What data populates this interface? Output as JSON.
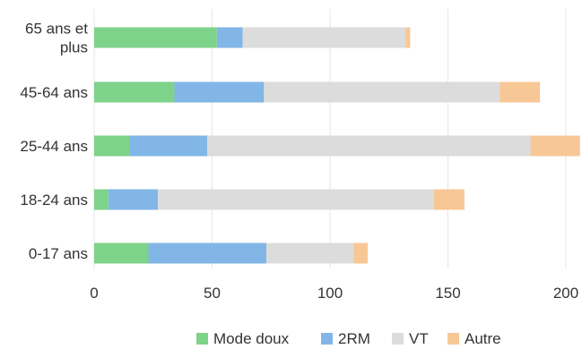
{
  "chart_data": {
    "type": "bar",
    "orientation": "horizontal",
    "stacked": true,
    "categories": [
      "65 ans et plus",
      "45-64 ans",
      "25-44 ans",
      "18-24 ans",
      "0-17 ans"
    ],
    "category_lines": [
      [
        "65 ans et",
        "plus"
      ],
      [
        "45-64 ans"
      ],
      [
        "25-44 ans"
      ],
      [
        "18-24 ans"
      ],
      [
        "0-17 ans"
      ]
    ],
    "series": [
      {
        "name": "Mode doux",
        "color": "#7dd389",
        "values": [
          52,
          34,
          15,
          6,
          23
        ]
      },
      {
        "name": "2RM",
        "color": "#82b6e6",
        "values": [
          11,
          38,
          33,
          21,
          50
        ]
      },
      {
        "name": "VT",
        "color": "#dcdcdc",
        "values": [
          69,
          100,
          137,
          117,
          37
        ]
      },
      {
        "name": "Autre",
        "color": "#f8c796",
        "values": [
          2,
          17,
          21,
          13,
          6
        ]
      }
    ],
    "xlim": [
      0,
      200
    ],
    "xticks": [
      "0",
      "50",
      "100",
      "150",
      "200"
    ],
    "grid": true,
    "legend_position": "bottom"
  }
}
